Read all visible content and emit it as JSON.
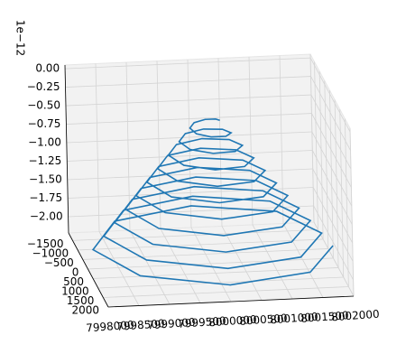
{
  "chart_data": {
    "type": "line3d",
    "color": "#1f77b4",
    "grid": true,
    "z_offset_label": "1e−12",
    "x": [
      8002000,
      8001398,
      8000000,
      7998634,
      7998090,
      7998665,
      8000000,
      8001303,
      8001820,
      8001271,
      8000000,
      7998761,
      7998270,
      7998793,
      8000000,
      8001176,
      8001640,
      8001144,
      8000000,
      7998888,
      7998450,
      7998920,
      8000000,
      8001048,
      8001460,
      8001016,
      8000000,
      7999015,
      7998630,
      7999047,
      8000000,
      8000921,
      8001280,
      8000889,
      8000000,
      7999143,
      7998810,
      7999174,
      8000000,
      8000794,
      8001100,
      8000762,
      8000000,
      7999270,
      7998990,
      7999302,
      8000000,
      8000666,
      8000920,
      8000635,
      8000000,
      7999397,
      7999170,
      7999429,
      8000000,
      8000539,
      8000740,
      8000507,
      8000000,
      7999524,
      7999350,
      7999556,
      8000000,
      8000412,
      8000560,
      8000380,
      8000000,
      7999652,
      7999530,
      7999684,
      8000000,
      8000285,
      8000380,
      8000253,
      8000000,
      7999779,
      7999710,
      7999811,
      8000000,
      8000157,
      8000200
    ],
    "y": [
      0,
      1398,
      1955,
      1366,
      0,
      -1335,
      -1865,
      -1303,
      0,
      1271,
      1775,
      1239,
      0,
      -1207,
      -1685,
      -1176,
      0,
      1144,
      1595,
      1112,
      0,
      -1080,
      -1505,
      -1048,
      0,
      1016,
      1415,
      985,
      0,
      -953,
      -1325,
      -921,
      0,
      889,
      1235,
      857,
      0,
      -826,
      -1145,
      -794,
      0,
      762,
      1055,
      730,
      0,
      -698,
      -965,
      -666,
      0,
      635,
      875,
      603,
      0,
      -571,
      -785,
      -539,
      0,
      507,
      695,
      476,
      0,
      -444,
      -605,
      -412,
      0,
      380,
      515,
      348,
      0,
      -316,
      -425,
      -285,
      0,
      253,
      335,
      221,
      0,
      -189,
      -245,
      -157,
      0
    ],
    "z": [
      -2.05,
      -2.028,
      -2.006,
      -1.984,
      -1.962,
      -1.94,
      -1.918,
      -1.896,
      -1.874,
      -1.852,
      -1.83,
      -1.808,
      -1.786,
      -1.764,
      -1.742,
      -1.72,
      -1.698,
      -1.676,
      -1.654,
      -1.632,
      -1.61,
      -1.588,
      -1.566,
      -1.544,
      -1.522,
      -1.5,
      -1.478,
      -1.456,
      -1.434,
      -1.412,
      -1.39,
      -1.368,
      -1.346,
      -1.324,
      -1.302,
      -1.28,
      -1.258,
      -1.236,
      -1.214,
      -1.192,
      -1.17,
      -1.148,
      -1.126,
      -1.104,
      -1.082,
      -1.06,
      -1.038,
      -1.016,
      -0.994,
      -0.972,
      -0.95,
      -0.928,
      -0.906,
      -0.884,
      -0.862,
      -0.84,
      -0.818,
      -0.796,
      -0.774,
      -0.752,
      -0.73,
      -0.708,
      -0.686,
      -0.664,
      -0.642,
      -0.62,
      -0.598,
      -0.576,
      -0.554,
      -0.532,
      -0.51,
      -0.488,
      -0.466,
      -0.444,
      -0.422,
      -0.4,
      -0.378,
      -0.356,
      -0.334,
      -0.312,
      -0.29
    ],
    "xlim": [
      7998000,
      8002000
    ],
    "xticks": [
      7998000,
      7998500,
      7999000,
      7999500,
      8000000,
      8000500,
      8001000,
      8001500,
      8002000
    ],
    "ylim": [
      -1900,
      2000
    ],
    "yticks": [
      {
        "value": -1500,
        "label": "−1500"
      },
      {
        "value": -1000,
        "label": "−1000"
      },
      {
        "value": -500,
        "label": "−500"
      },
      0,
      500,
      1000,
      1500,
      2000
    ],
    "zlim": [
      -2.22,
      0.05
    ],
    "zticks": [
      {
        "value": 0,
        "label": "0.00"
      },
      {
        "value": -0.25,
        "label": "−0.25"
      },
      {
        "value": -0.5,
        "label": "−0.50"
      },
      {
        "value": -0.75,
        "label": "−0.75"
      },
      {
        "value": -1,
        "label": "−1.00"
      },
      {
        "value": -1.25,
        "label": "−1.25"
      },
      {
        "value": -1.5,
        "label": "−1.50"
      },
      {
        "value": -1.75,
        "label": "−1.75"
      },
      {
        "value": -2,
        "label": "−2.00"
      }
    ]
  }
}
